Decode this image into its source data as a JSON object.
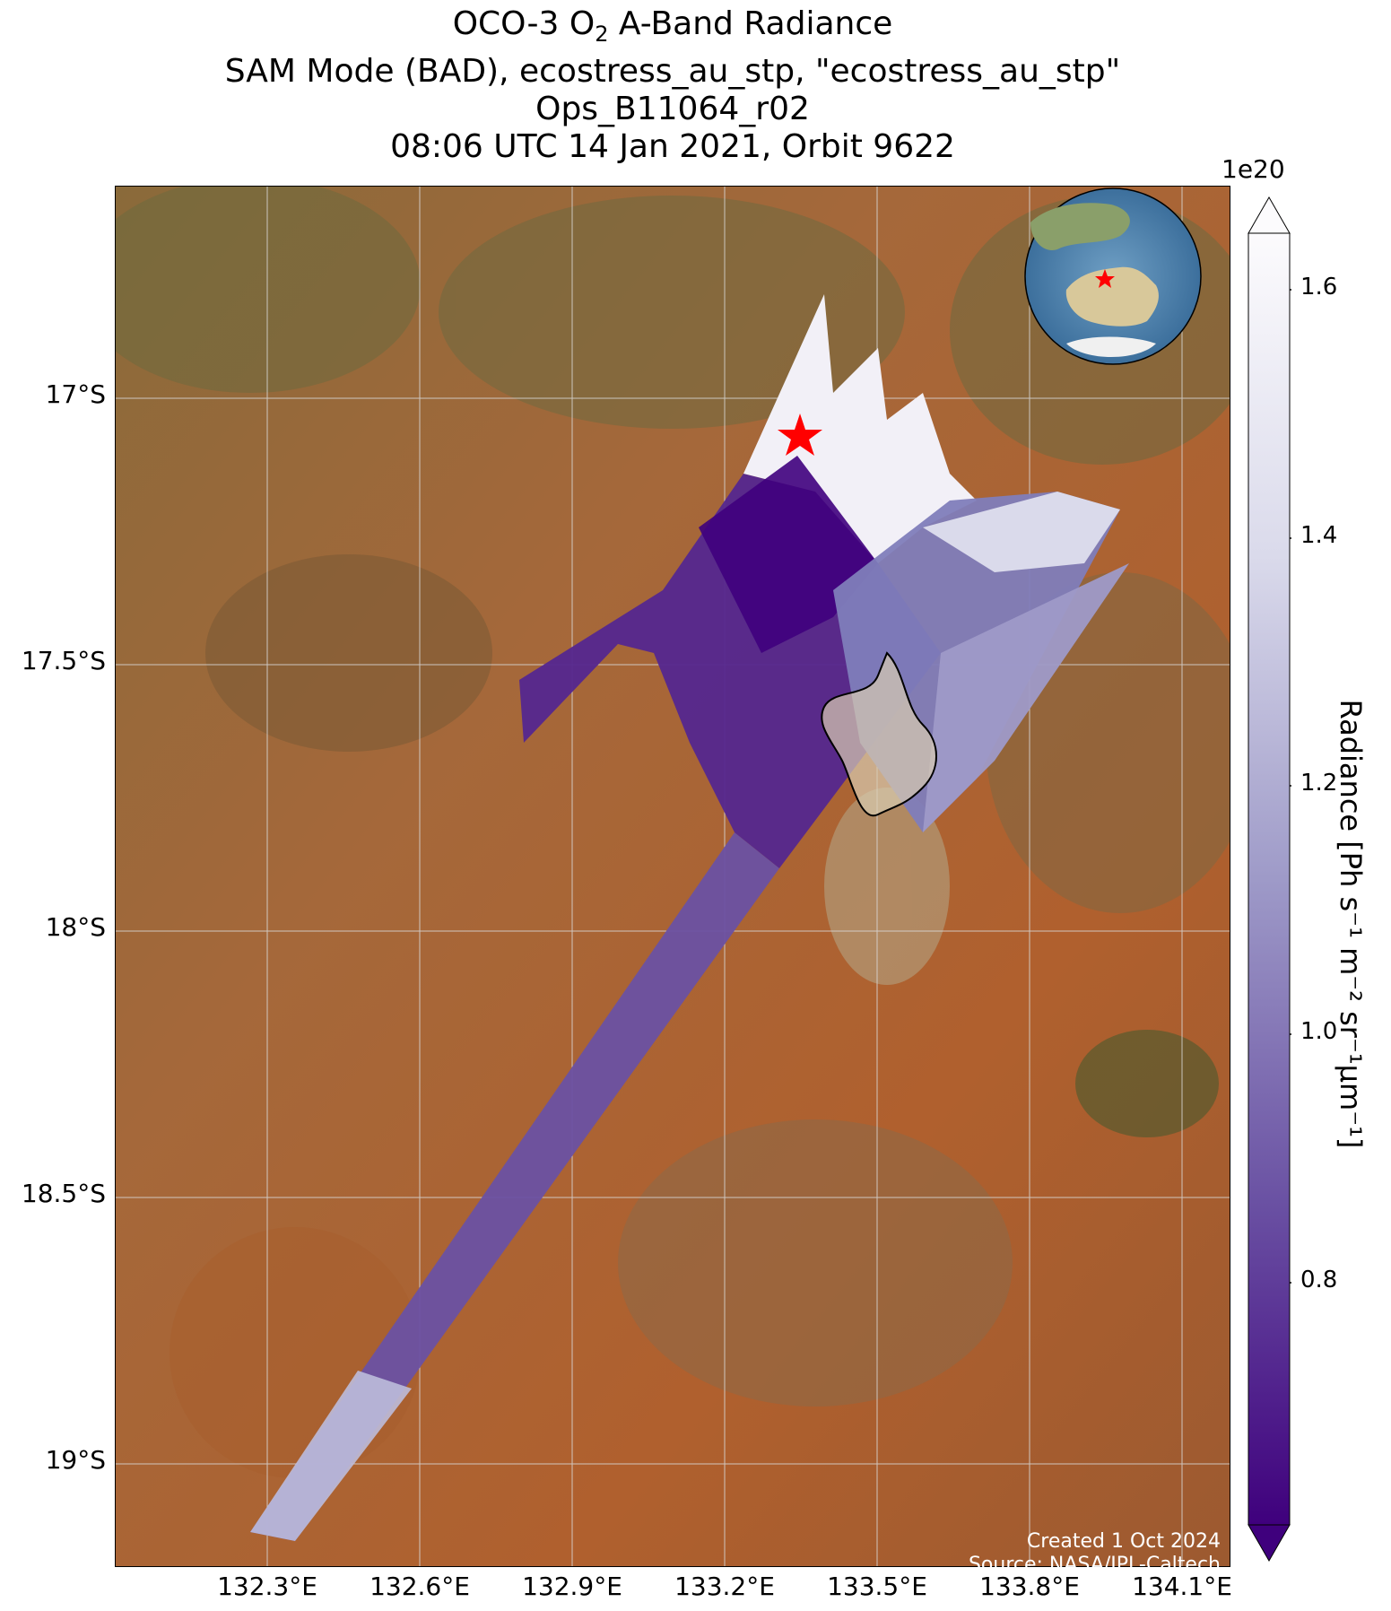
{
  "title": {
    "line1_prefix": "OCO-3 O",
    "line1_sub": "2",
    "line1_suffix": " A-Band Radiance",
    "line2": "SAM Mode (BAD), ecostress_au_stp, \"ecostress_au_stp\"",
    "line3": "Ops_B11064_r02",
    "line4": "08:06 UTC 14 Jan 2021, Orbit 9622"
  },
  "axes": {
    "lat_labels": [
      "17°S",
      "17.5°S",
      "18°S",
      "18.5°S",
      "19°S"
    ],
    "lon_labels": [
      "132.3°E",
      "132.6°E",
      "132.9°E",
      "133.2°E",
      "133.5°E",
      "133.8°E",
      "134.1°E"
    ]
  },
  "colorbar": {
    "exponent": "1e20",
    "ticks": [
      "1.6",
      "1.4",
      "1.2",
      "1.0",
      "0.8"
    ],
    "label": "Radiance [Ph s⁻¹ m⁻² sr⁻¹μm⁻¹]",
    "colormap": "Purples_r",
    "low_color": "#3f007d",
    "high_color": "#fcfbfd",
    "min": 0.62,
    "max": 1.62
  },
  "credit": {
    "created": "Created 1 Oct 2024",
    "source": "Source: NASA/JPL-Caltech"
  },
  "map": {
    "basemap": "satellite imagery, Northern Territory, Australia",
    "target_marker": "red star",
    "inset": "globe centered on Australia with red star marker"
  }
}
